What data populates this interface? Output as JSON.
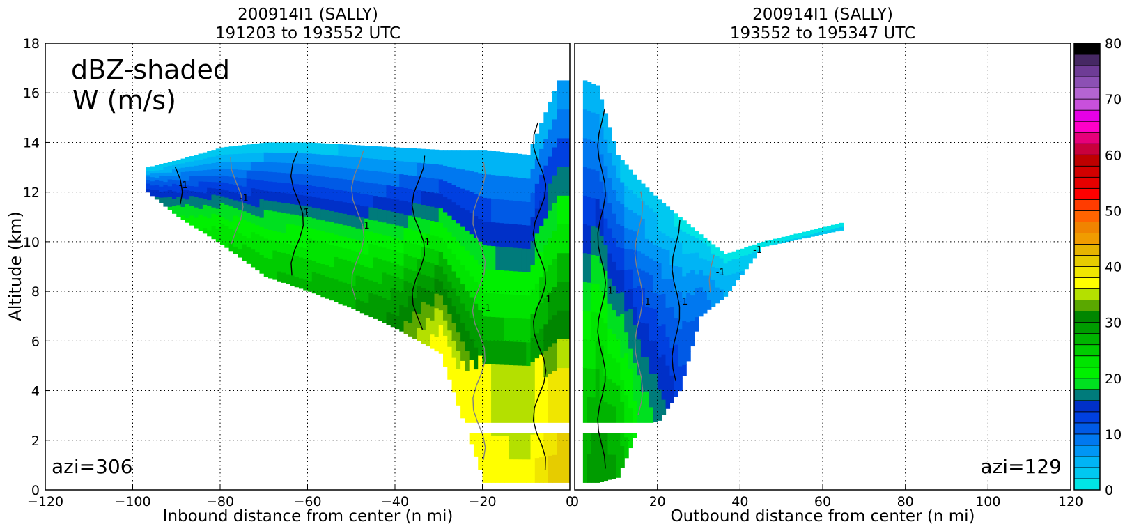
{
  "chart_data": [
    {
      "type": "heatmap",
      "title_line1": "200914I1 (SALLY)",
      "title_line2": "191203 to 193552 UTC",
      "xlabel": "Inbound distance from center (n mi)",
      "ylabel": "Altitude (km)",
      "xlim": [
        -120,
        0
      ],
      "ylim": [
        0,
        18
      ],
      "x_ticks": [
        "−120",
        "−100",
        "−80",
        "−60",
        "−40",
        "−20",
        "0"
      ],
      "x_tick_values": [
        -120,
        -100,
        -80,
        -60,
        -40,
        -20,
        0
      ],
      "y_ticks": [
        "0",
        "2",
        "4",
        "6",
        "8",
        "10",
        "12",
        "14",
        "16",
        "18"
      ],
      "y_tick_values": [
        0,
        2,
        4,
        6,
        8,
        10,
        12,
        14,
        16,
        18
      ],
      "grid": true,
      "annotation_top": [
        "dBZ-shaded",
        "W (m/s)"
      ],
      "annotation_bottom": "azi=306",
      "contour_label": "-1",
      "reflectivity_profile": {
        "x": [
          -97,
          -90,
          -80,
          -70,
          -60,
          -50,
          -40,
          -30,
          -20,
          -10,
          -3,
          0
        ],
        "echo_top_km": [
          13.0,
          13.3,
          13.8,
          14.0,
          14.0,
          13.9,
          13.8,
          13.7,
          13.7,
          13.5,
          16.5,
          16.5
        ],
        "echo_base_km": [
          12.0,
          11.0,
          9.9,
          8.6,
          8.0,
          7.3,
          6.5,
          5.5,
          0.3,
          0.3,
          0.3,
          0.3
        ],
        "max_dbz": [
          15,
          20,
          24,
          26,
          27,
          28,
          31,
          38,
          38,
          37,
          42,
          42
        ]
      }
    },
    {
      "type": "heatmap",
      "title_line1": "200914I1 (SALLY)",
      "title_line2": "193552 to 195347 UTC",
      "xlabel": "Outbound distance from center (n mi)",
      "xlim": [
        0,
        120
      ],
      "ylim": [
        0,
        18
      ],
      "x_ticks": [
        "0",
        "20",
        "40",
        "60",
        "80",
        "100",
        "120"
      ],
      "x_tick_values": [
        0,
        20,
        40,
        60,
        80,
        100,
        120
      ],
      "grid": true,
      "annotation_bottom": "azi=129",
      "contour_label": "-1",
      "reflectivity_profile": {
        "x": [
          2,
          5,
          10,
          15,
          20,
          25,
          30,
          36,
          45,
          65
        ],
        "echo_top_km": [
          16.5,
          16.3,
          13.5,
          12.5,
          11.7,
          11.0,
          10.3,
          9.5,
          10.0,
          10.8
        ],
        "echo_base_km": [
          0.3,
          0.3,
          0.5,
          2.5,
          2.8,
          4.0,
          7.0,
          7.8,
          9.8,
          10.5
        ],
        "max_dbz": [
          28,
          30,
          28,
          20,
          17,
          13,
          10,
          6,
          2,
          3
        ]
      }
    }
  ],
  "colorbar": {
    "ticks": [
      "0",
      "10",
      "20",
      "30",
      "40",
      "50",
      "60",
      "70",
      "80"
    ],
    "tick_values": [
      0,
      10,
      20,
      30,
      40,
      50,
      60,
      70,
      80
    ],
    "range": [
      0,
      80
    ],
    "step": 2,
    "colors": [
      "#00e5e5",
      "#00c8f0",
      "#00b4f5",
      "#0096f5",
      "#0078f0",
      "#005ae6",
      "#0040e0",
      "#0030c8",
      "#007b7b",
      "#00e020",
      "#00f000",
      "#00e400",
      "#00cc00",
      "#00b400",
      "#009c00",
      "#008600",
      "#5aa800",
      "#b4e000",
      "#ffff00",
      "#f0e600",
      "#e6cc00",
      "#e6b400",
      "#f09c00",
      "#f08400",
      "#ff6400",
      "#ff3c00",
      "#ff0000",
      "#e60000",
      "#d20000",
      "#be0000",
      "#c8003c",
      "#e6007a",
      "#ff00c8",
      "#e600e6",
      "#c850dc",
      "#b464d2",
      "#8c50b4",
      "#6e3c96",
      "#462864",
      "#000000"
    ]
  }
}
